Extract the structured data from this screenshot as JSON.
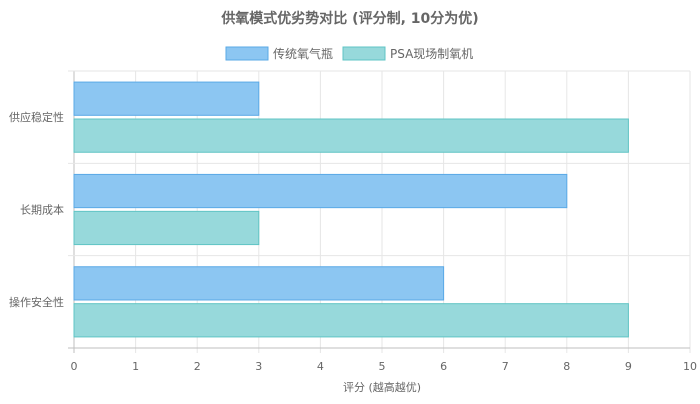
{
  "chart_data": {
    "type": "bar",
    "orientation": "horizontal",
    "title": "供氧模式优劣势对比 (评分制, 10分为优)",
    "xlabel": "评分 (越高越优)",
    "ylabel": "",
    "xlim": [
      0,
      10
    ],
    "x_ticks": [
      "0",
      "1",
      "2",
      "3",
      "4",
      "5",
      "6",
      "7",
      "8",
      "9",
      "10"
    ],
    "grid": true,
    "legend_position": "top",
    "categories": [
      "供应稳定性",
      "长期成本",
      "操作安全性"
    ],
    "series": [
      {
        "name": "传统氧气瓶",
        "values": [
          3,
          8,
          6
        ],
        "fill": "#8cc6f2",
        "stroke": "#5aa9e6"
      },
      {
        "name": "PSA现场制氧机",
        "values": [
          9,
          3,
          9
        ],
        "fill": "#97d9db",
        "stroke": "#5fc4c4"
      }
    ]
  }
}
